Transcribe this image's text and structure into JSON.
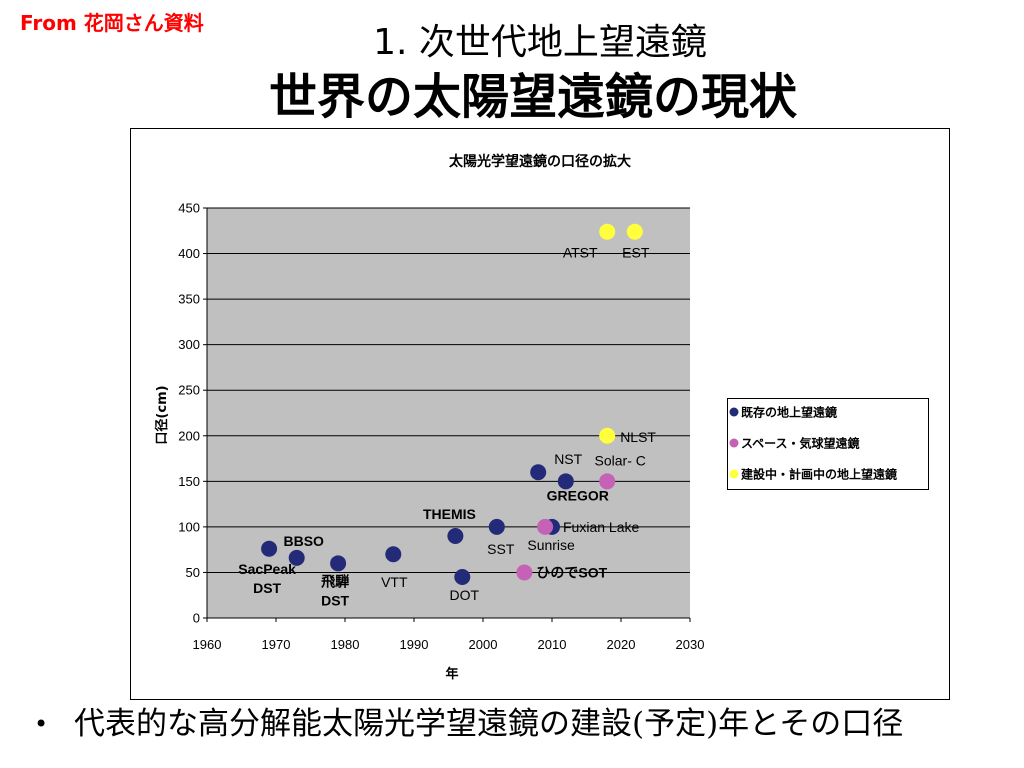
{
  "slide": {
    "source_note": "From 花岡さん資料",
    "heading": "1. 次世代地上望遠鏡",
    "title": "世界の太陽望遠鏡の現状",
    "bullet": "代表的な高分解能太陽光学望遠鏡の建設(予定)年とその口径"
  },
  "colors": {
    "source_note": "#ff0000",
    "plot_background": "#c0c0c0"
  },
  "chart_data": {
    "type": "scatter",
    "title": "太陽光学望遠鏡の口径の拡大",
    "xlabel": "年",
    "ylabel": "口径(cm)",
    "xlim": [
      1960,
      2030
    ],
    "ylim": [
      0,
      450
    ],
    "xticks": [
      1960,
      1970,
      1980,
      1990,
      2000,
      2010,
      2020,
      2030
    ],
    "yticks": [
      0,
      50,
      100,
      150,
      200,
      250,
      300,
      350,
      400,
      450
    ],
    "grid": "horizontal",
    "legend_position": "right",
    "series": [
      {
        "name": "既存の地上望遠鏡",
        "color": "#232b78",
        "points": [
          {
            "x": 1969,
            "y": 76,
            "label": [
              "SacPeak",
              "DST"
            ]
          },
          {
            "x": 1973,
            "y": 66,
            "label": [
              "BBSO"
            ]
          },
          {
            "x": 1979,
            "y": 60,
            "label": [
              "飛騨",
              "DST"
            ]
          },
          {
            "x": 1987,
            "y": 70,
            "label": [
              "VTT"
            ]
          },
          {
            "x": 1996,
            "y": 90,
            "label": [
              "THEMIS"
            ]
          },
          {
            "x": 1997,
            "y": 45,
            "label": [
              "DOT"
            ]
          },
          {
            "x": 2002,
            "y": 100,
            "label": [
              "SST"
            ]
          },
          {
            "x": 2008,
            "y": 160,
            "label": [
              "NST"
            ]
          },
          {
            "x": 2010,
            "y": 100,
            "label": [
              "Fuxian Lake"
            ]
          },
          {
            "x": 2012,
            "y": 150,
            "label": [
              "GREGOR"
            ]
          }
        ]
      },
      {
        "name": "スペース・気球望遠鏡",
        "color": "#c562b5",
        "points": [
          {
            "x": 2006,
            "y": 50,
            "label": [
              "ひのでSOT"
            ]
          },
          {
            "x": 2009,
            "y": 100,
            "label": [
              "Sunrise"
            ]
          },
          {
            "x": 2018,
            "y": 150,
            "label": [
              "Solar- C"
            ]
          }
        ]
      },
      {
        "name": "建設中・計画中の地上望遠鏡",
        "color": "#ffff3b",
        "points": [
          {
            "x": 2018,
            "y": 200,
            "label": [
              "NLST"
            ]
          },
          {
            "x": 2018,
            "y": 424,
            "label": [
              "ATST"
            ]
          },
          {
            "x": 2022,
            "y": 424,
            "label": [
              "EST"
            ]
          }
        ]
      }
    ]
  }
}
